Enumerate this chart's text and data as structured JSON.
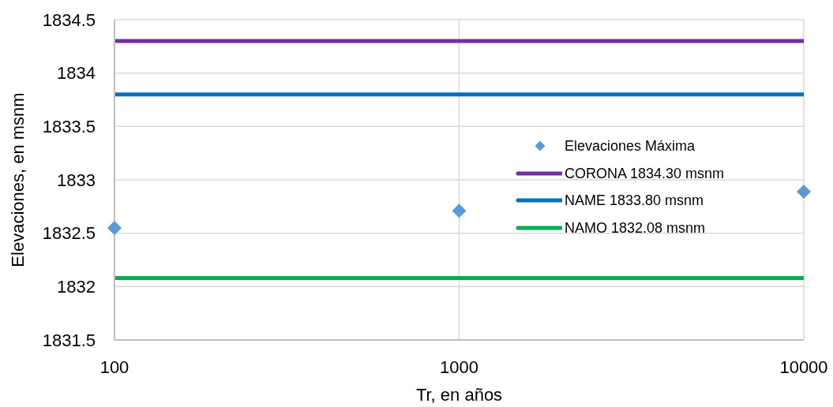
{
  "chart_data": {
    "type": "scatter",
    "xlabel": "Tr, en años",
    "ylabel": "Elevaciones, en msnm",
    "log": "x",
    "xlim": [
      100,
      10000
    ],
    "xticks": [
      100,
      1000,
      10000
    ],
    "ylim": [
      1831.5,
      1834.5
    ],
    "yticks": [
      1831.5,
      1832,
      1832.5,
      1833,
      1833.5,
      1834,
      1834.5
    ],
    "grid": true,
    "legend": "right",
    "line_style": "solid",
    "series": [
      {
        "name": "Elevaciones Máxima",
        "type": "scatter",
        "marker": "diamond",
        "color": "#5b9bd5",
        "x": [
          100,
          1000,
          10000
        ],
        "values": [
          1832.55,
          1832.71,
          1832.89
        ]
      },
      {
        "name": "CORONA 1834.30 msnm",
        "type": "line",
        "color": "#7030a0",
        "x": [
          100,
          10000
        ],
        "values": [
          1834.3,
          1834.3
        ]
      },
      {
        "name": "NAME 1833.80 msnm",
        "type": "line",
        "color": "#0070c0",
        "x": [
          100,
          10000
        ],
        "values": [
          1833.8,
          1833.8
        ]
      },
      {
        "name": "NAMO 1832.08 msnm",
        "type": "line",
        "color": "#00b050",
        "x": [
          100,
          10000
        ],
        "values": [
          1832.08,
          1832.08
        ]
      }
    ]
  }
}
